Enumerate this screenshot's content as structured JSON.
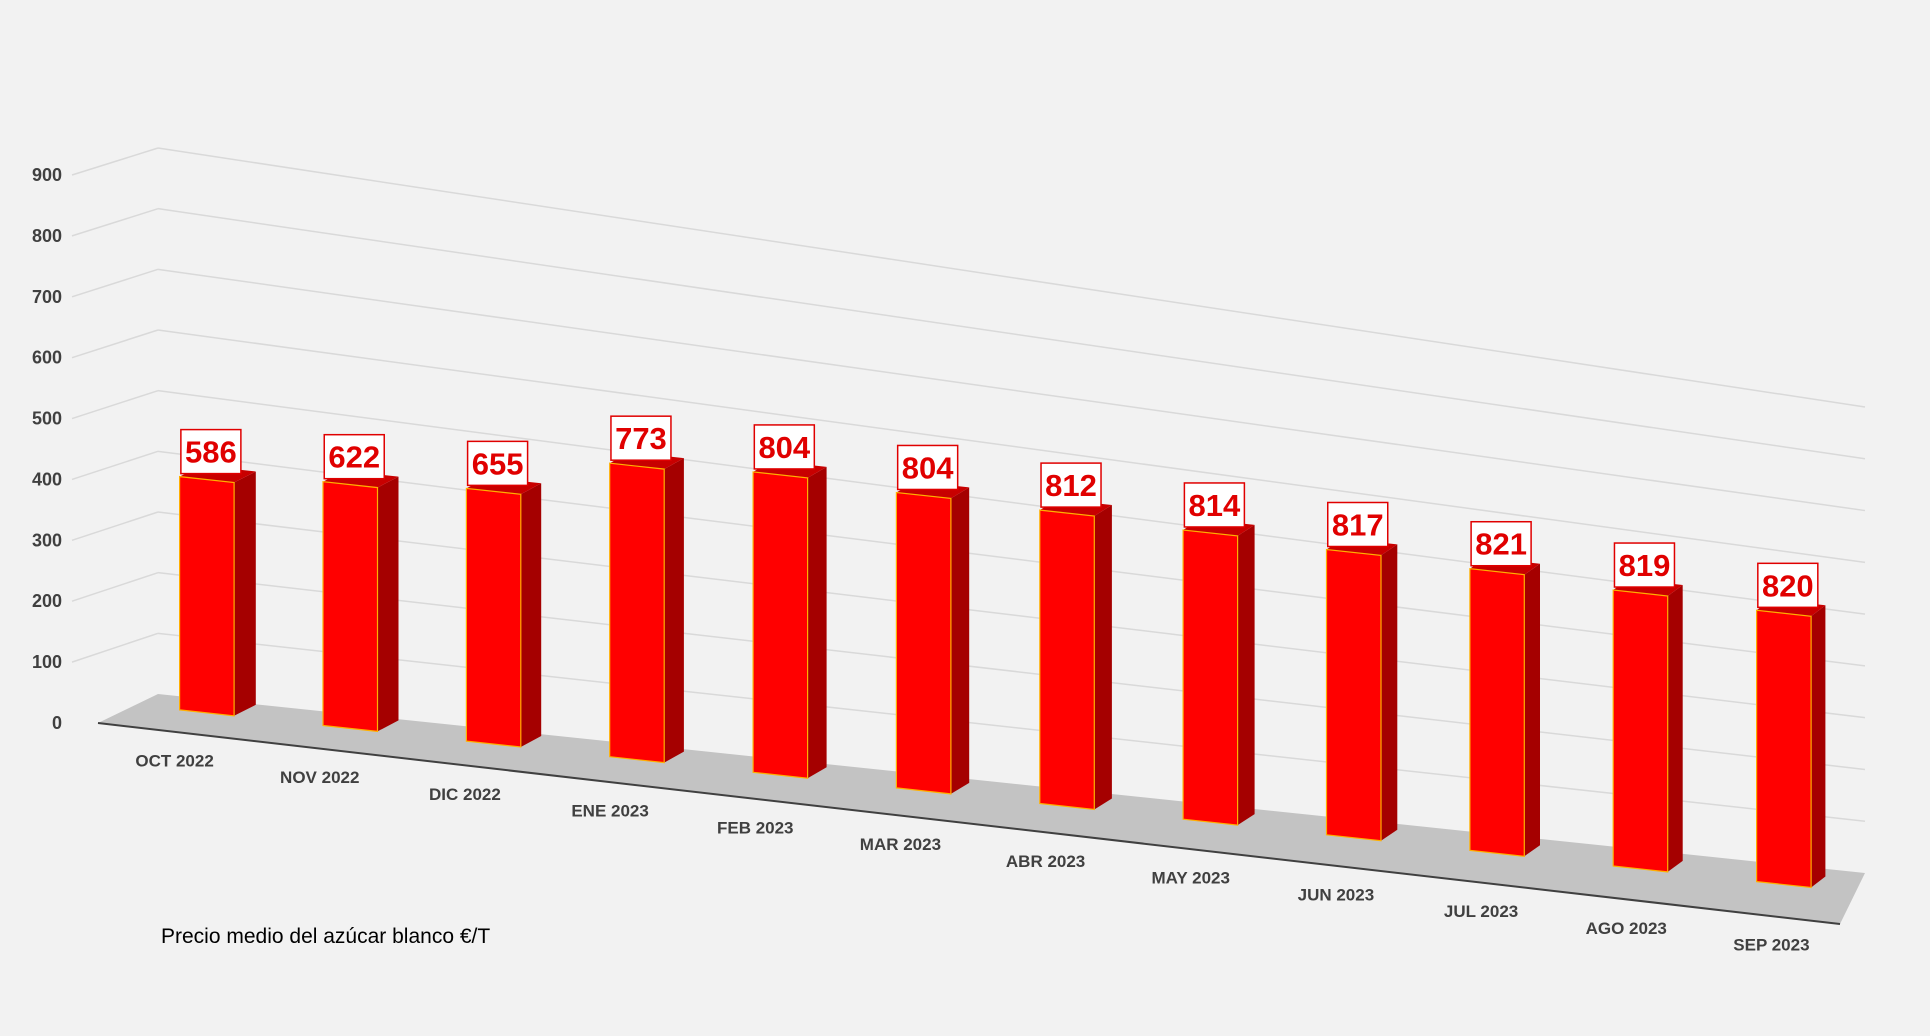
{
  "chart_data": {
    "type": "bar",
    "categories": [
      "OCT 2022",
      "NOV 2022",
      "DIC 2022",
      "ENE 2023",
      "FEB 2023",
      "MAR 2023",
      "ABR 2023",
      "MAY 2023",
      "JUN 2023",
      "JUL 2023",
      "AGO 2023",
      "SEP 2023"
    ],
    "values": [
      586,
      622,
      655,
      773,
      804,
      804,
      812,
      814,
      817,
      821,
      819,
      820
    ],
    "ylim": [
      0,
      900
    ],
    "yticks": [
      0,
      100,
      200,
      300,
      400,
      500,
      600,
      700,
      800,
      900
    ],
    "grid": true,
    "data_labels": true,
    "caption": "Precio medio del azúcar blanco €/T",
    "colors": {
      "bar_front": "#ff0000",
      "bar_side": "#a50000",
      "bar_top": "#c80000",
      "label_text": "#e00000",
      "floor": "#c3c3c3",
      "gridline": "#d9d9d9"
    }
  }
}
